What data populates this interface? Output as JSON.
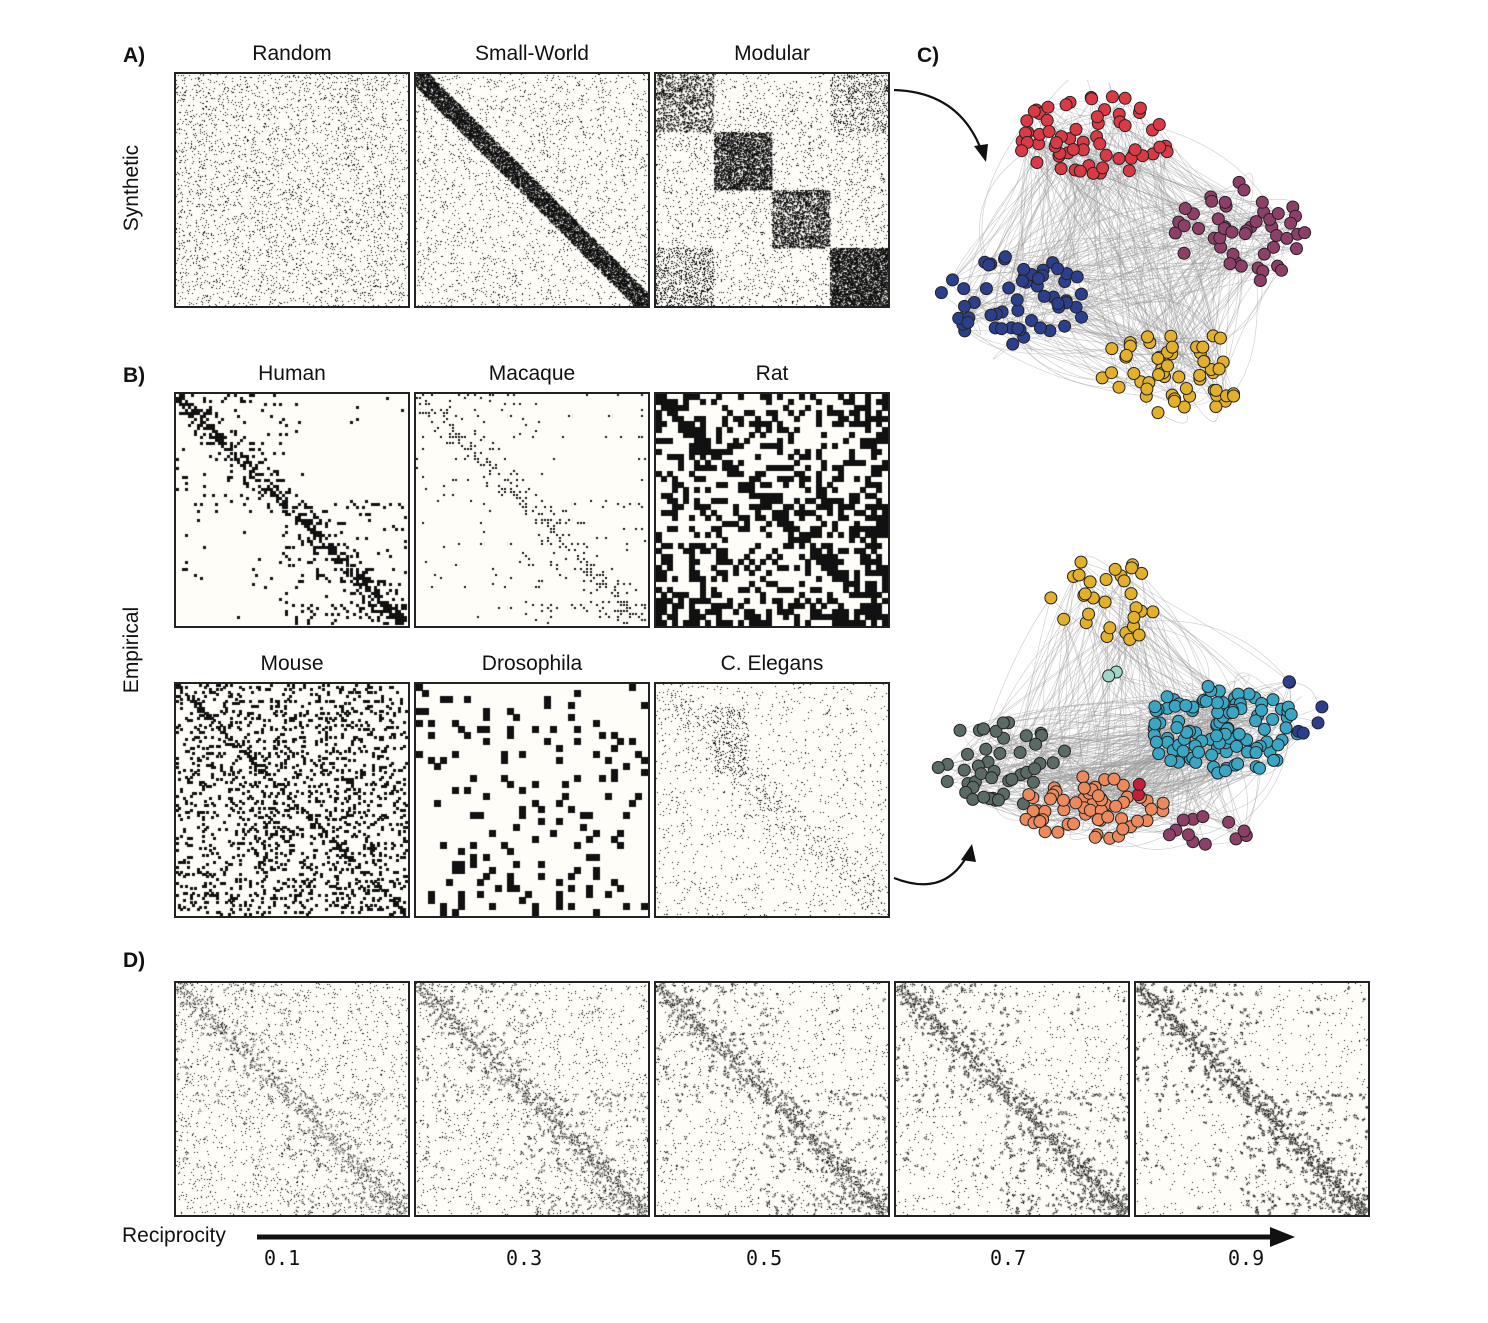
{
  "panels": {
    "a": "A)",
    "b": "B)",
    "c": "C)",
    "d": "D)"
  },
  "row_labels": {
    "synthetic": "Synthetic",
    "empirical": "Empirical"
  },
  "synthetic": [
    {
      "title": "Random",
      "kind": "random"
    },
    {
      "title": "Small-World",
      "kind": "smallworld"
    },
    {
      "title": "Modular",
      "kind": "modular"
    }
  ],
  "empirical": [
    {
      "title": "Human",
      "kind": "human"
    },
    {
      "title": "Macaque",
      "kind": "macaque"
    },
    {
      "title": "Rat",
      "kind": "rat"
    },
    {
      "title": "Mouse",
      "kind": "mouse"
    },
    {
      "title": "Drosophila",
      "kind": "drosophila"
    },
    {
      "title": "C. Elegans",
      "kind": "celegans"
    }
  ],
  "reciprocity": {
    "label": "Reciprocity",
    "values": [
      "0.1",
      "0.3",
      "0.5",
      "0.7",
      "0.9"
    ]
  },
  "network_top_colors": [
    "#d93a45",
    "#8e3f68",
    "#2c3f8c",
    "#e2b02a"
  ],
  "network_bottom_colors": [
    "#e2b02a",
    "#3aa6c4",
    "#5a6b66",
    "#ec8a5e",
    "#8e3f68",
    "#2c3f8c",
    "#9fd6c8",
    "#c41e3a"
  ],
  "colors": {
    "matrix_bg": "#fffdf7",
    "ink": "#111111",
    "edge": "#9a9a9a"
  }
}
